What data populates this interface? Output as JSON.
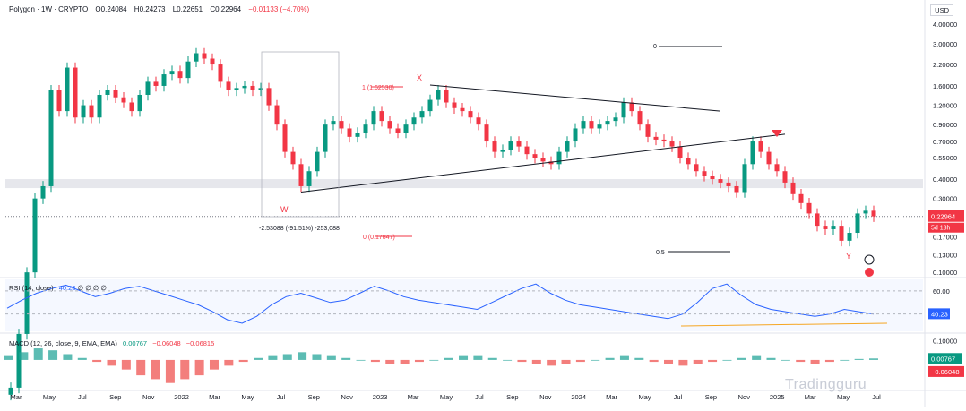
{
  "header": {
    "symbol": "Polygon · 1W · CRYPTO",
    "open": "O0.24084",
    "high": "H0.24273",
    "low": "L0.22651",
    "close": "C0.22964",
    "change": "−0.01133 (−4.70%)"
  },
  "currency_button": "USD",
  "rsi_legend": {
    "label": "RSI (14, close)",
    "value": "40.23",
    "placeholders": "∅ ∅ ∅ ∅"
  },
  "macd_legend": {
    "label": "MACD (12, 26, close, 9, EMA, EMA)",
    "v1": "0.00767",
    "v2": "−0.06048",
    "v3": "−0.06815"
  },
  "watermark": "Tradingguru",
  "colors": {
    "up": "#089981",
    "down": "#f23645",
    "rsi": "#2962ff",
    "macd": "#2962ff",
    "signal": "#ff6d00",
    "trendline": "#131722",
    "zone": "#d1d4dc"
  },
  "chart_data": [
    {
      "type": "candlestick",
      "title": "Polygon · 1W · CRYPTO",
      "scale": "log",
      "y_ticks": [
        4.0,
        3.0,
        2.2,
        1.6,
        1.2,
        0.9,
        0.7,
        0.55,
        0.4,
        0.3,
        0.22964,
        0.17,
        0.13,
        0.1
      ],
      "y_tick_labels": [
        "4.00000",
        "3.00000",
        "2.20000",
        "1.60000",
        "1.20000",
        "0.90000",
        "0.70000",
        "0.55000",
        "0.40000",
        "0.30000",
        "0.22964",
        "0.17000",
        "0.13000",
        "0.10000"
      ],
      "current_price": "0.22964",
      "countdown": "5d 13h",
      "x_labels": [
        "Mar",
        "May",
        "Jul",
        "Sep",
        "Nov",
        "2022",
        "Mar",
        "May",
        "Jul",
        "Sep",
        "Nov",
        "2023",
        "Mar",
        "May",
        "Jul",
        "Sep",
        "Nov",
        "2024",
        "Mar",
        "May",
        "Jul",
        "Sep",
        "Nov",
        "2025",
        "Mar",
        "May",
        "Jul"
      ],
      "series": [
        {
          "x": 0,
          "c": 0.018
        },
        {
          "x": 2,
          "c": 0.04
        },
        {
          "x": 4,
          "c": 0.1
        },
        {
          "x": 6,
          "c": 0.3
        },
        {
          "x": 8,
          "c": 0.36
        },
        {
          "x": 10,
          "c": 1.5
        },
        {
          "x": 12,
          "c": 1.1
        },
        {
          "x": 14,
          "c": 2.1
        },
        {
          "x": 16,
          "c": 1.0
        },
        {
          "x": 18,
          "c": 1.2
        },
        {
          "x": 20,
          "c": 1.0
        },
        {
          "x": 22,
          "c": 1.4
        },
        {
          "x": 24,
          "c": 1.5
        },
        {
          "x": 26,
          "c": 1.35
        },
        {
          "x": 28,
          "c": 1.25
        },
        {
          "x": 30,
          "c": 1.1
        },
        {
          "x": 32,
          "c": 1.4
        },
        {
          "x": 34,
          "c": 1.7
        },
        {
          "x": 36,
          "c": 1.6
        },
        {
          "x": 38,
          "c": 1.9
        },
        {
          "x": 40,
          "c": 2.0
        },
        {
          "x": 42,
          "c": 1.8
        },
        {
          "x": 44,
          "c": 2.3
        },
        {
          "x": 46,
          "c": 2.6
        },
        {
          "x": 48,
          "c": 2.4
        },
        {
          "x": 50,
          "c": 2.2
        },
        {
          "x": 52,
          "c": 1.7
        },
        {
          "x": 54,
          "c": 1.5
        },
        {
          "x": 56,
          "c": 1.55
        },
        {
          "x": 58,
          "c": 1.6
        },
        {
          "x": 60,
          "c": 1.5
        },
        {
          "x": 62,
          "c": 1.55
        },
        {
          "x": 64,
          "c": 1.2
        },
        {
          "x": 66,
          "c": 0.9
        },
        {
          "x": 68,
          "c": 0.6
        },
        {
          "x": 70,
          "c": 0.5
        },
        {
          "x": 72,
          "c": 0.36
        },
        {
          "x": 74,
          "c": 0.45
        },
        {
          "x": 76,
          "c": 0.6
        },
        {
          "x": 78,
          "c": 0.9
        },
        {
          "x": 80,
          "c": 0.95
        },
        {
          "x": 82,
          "c": 0.85
        },
        {
          "x": 84,
          "c": 0.75
        },
        {
          "x": 86,
          "c": 0.8
        },
        {
          "x": 88,
          "c": 0.9
        },
        {
          "x": 90,
          "c": 1.1
        },
        {
          "x": 92,
          "c": 0.95
        },
        {
          "x": 94,
          "c": 0.85
        },
        {
          "x": 96,
          "c": 0.8
        },
        {
          "x": 98,
          "c": 0.9
        },
        {
          "x": 100,
          "c": 1.0
        },
        {
          "x": 102,
          "c": 1.1
        },
        {
          "x": 104,
          "c": 1.3
        },
        {
          "x": 106,
          "c": 1.5
        },
        {
          "x": 108,
          "c": 1.25
        },
        {
          "x": 110,
          "c": 1.15
        },
        {
          "x": 112,
          "c": 1.1
        },
        {
          "x": 114,
          "c": 1.0
        },
        {
          "x": 116,
          "c": 0.9
        },
        {
          "x": 118,
          "c": 0.7
        },
        {
          "x": 120,
          "c": 0.6
        },
        {
          "x": 122,
          "c": 0.62
        },
        {
          "x": 124,
          "c": 0.7
        },
        {
          "x": 126,
          "c": 0.65
        },
        {
          "x": 128,
          "c": 0.58
        },
        {
          "x": 130,
          "c": 0.55
        },
        {
          "x": 132,
          "c": 0.52
        },
        {
          "x": 134,
          "c": 0.5
        },
        {
          "x": 136,
          "c": 0.6
        },
        {
          "x": 138,
          "c": 0.7
        },
        {
          "x": 140,
          "c": 0.85
        },
        {
          "x": 142,
          "c": 0.95
        },
        {
          "x": 144,
          "c": 0.85
        },
        {
          "x": 146,
          "c": 0.9
        },
        {
          "x": 148,
          "c": 0.95
        },
        {
          "x": 150,
          "c": 1.0
        },
        {
          "x": 152,
          "c": 1.25
        },
        {
          "x": 154,
          "c": 1.1
        },
        {
          "x": 156,
          "c": 0.9
        },
        {
          "x": 158,
          "c": 0.75
        },
        {
          "x": 160,
          "c": 0.72
        },
        {
          "x": 162,
          "c": 0.7
        },
        {
          "x": 164,
          "c": 0.65
        },
        {
          "x": 166,
          "c": 0.55
        },
        {
          "x": 168,
          "c": 0.5
        },
        {
          "x": 170,
          "c": 0.45
        },
        {
          "x": 172,
          "c": 0.42
        },
        {
          "x": 174,
          "c": 0.4
        },
        {
          "x": 176,
          "c": 0.38
        },
        {
          "x": 178,
          "c": 0.36
        },
        {
          "x": 180,
          "c": 0.33
        },
        {
          "x": 182,
          "c": 0.5
        },
        {
          "x": 184,
          "c": 0.7
        },
        {
          "x": 186,
          "c": 0.6
        },
        {
          "x": 188,
          "c": 0.5
        },
        {
          "x": 190,
          "c": 0.45
        },
        {
          "x": 192,
          "c": 0.38
        },
        {
          "x": 194,
          "c": 0.32
        },
        {
          "x": 196,
          "c": 0.28
        },
        {
          "x": 198,
          "c": 0.24
        },
        {
          "x": 200,
          "c": 0.2
        },
        {
          "x": 202,
          "c": 0.19
        },
        {
          "x": 204,
          "c": 0.2
        },
        {
          "x": 206,
          "c": 0.16
        },
        {
          "x": 208,
          "c": 0.18
        },
        {
          "x": 210,
          "c": 0.24
        },
        {
          "x": 212,
          "c": 0.25
        },
        {
          "x": 214,
          "c": 0.23
        }
      ],
      "annotations": [
        {
          "text": "W",
          "color": "#f23645"
        },
        {
          "text": "X",
          "color": "#f23645"
        },
        {
          "text": "Y",
          "color": "#f23645"
        },
        {
          "text": "1 (1.62530)",
          "color": "#f23645"
        },
        {
          "text": "0 (0.17847)",
          "color": "#f23645"
        },
        {
          "text": "0",
          "color": "#131722"
        },
        {
          "text": "0.5",
          "color": "#131722"
        },
        {
          "text": "-2.53088 (-91.51%) -253,088",
          "color": "#131722"
        }
      ],
      "zone": {
        "from": 0.35,
        "to": 0.4
      }
    },
    {
      "type": "line",
      "title": "RSI (14, close)",
      "y_ticks": [
        60.0,
        40.23
      ],
      "y_tick_labels": [
        "60.00",
        "40.23"
      ],
      "series": [
        {
          "name": "RSI",
          "values": [
            45,
            52,
            58,
            62,
            65,
            60,
            55,
            58,
            62,
            64,
            60,
            56,
            52,
            48,
            42,
            35,
            32,
            38,
            48,
            55,
            58,
            54,
            50,
            52,
            58,
            64,
            60,
            55,
            52,
            50,
            48,
            46,
            44,
            50,
            56,
            62,
            66,
            58,
            52,
            48,
            46,
            44,
            42,
            40,
            38,
            36,
            40,
            50,
            62,
            66,
            56,
            48,
            44,
            42,
            40,
            38,
            40,
            44,
            42,
            40
          ]
        }
      ]
    },
    {
      "type": "bar",
      "title": "MACD (12, 26, close, 9, EMA, EMA)",
      "y_ticks": [
        0.1,
        0.00767,
        -0.06048
      ],
      "y_tick_labels": [
        "0.10000",
        "0.00767",
        "−0.06048"
      ],
      "series": [
        {
          "name": "Histogram",
          "values": [
            0.02,
            0.04,
            0.06,
            0.05,
            0.03,
            0.01,
            -0.01,
            -0.03,
            -0.05,
            -0.08,
            -0.1,
            -0.12,
            -0.1,
            -0.08,
            -0.05,
            -0.03,
            -0.01,
            0.01,
            0.02,
            0.03,
            0.04,
            0.03,
            0.02,
            0.01,
            0.0,
            -0.01,
            -0.02,
            -0.02,
            -0.01,
            0.0,
            0.01,
            0.02,
            0.02,
            0.01,
            0.0,
            -0.01,
            -0.02,
            -0.03,
            -0.02,
            -0.01,
            0.0,
            0.01,
            0.02,
            0.01,
            -0.01,
            -0.02,
            -0.03,
            -0.02,
            -0.01,
            0.0,
            0.01,
            0.02,
            0.01,
            0.0,
            -0.01,
            -0.02,
            -0.01,
            0.0,
            0.005,
            0.00767
          ]
        }
      ]
    }
  ]
}
